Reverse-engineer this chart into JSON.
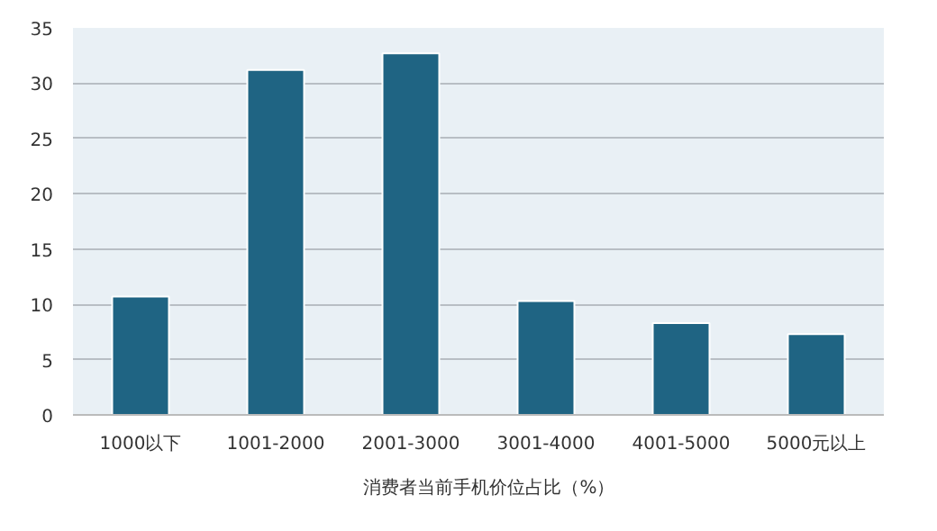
{
  "chart_data": {
    "type": "bar",
    "categories": [
      "1000以下",
      "1001-2000",
      "2001-3000",
      "3001-4000",
      "4001-5000",
      "5000元以上"
    ],
    "series": [
      {
        "name": "消费者当前手机价位占比（%）",
        "color": "#1f6483",
        "values": [
          10.7,
          31.2,
          32.7,
          10.3,
          8.3,
          7.3
        ]
      }
    ],
    "ylim": [
      0,
      35
    ],
    "yticks": [
      0,
      5,
      10,
      15,
      20,
      25,
      30,
      35
    ],
    "grid": "y",
    "legend": "bottom"
  }
}
